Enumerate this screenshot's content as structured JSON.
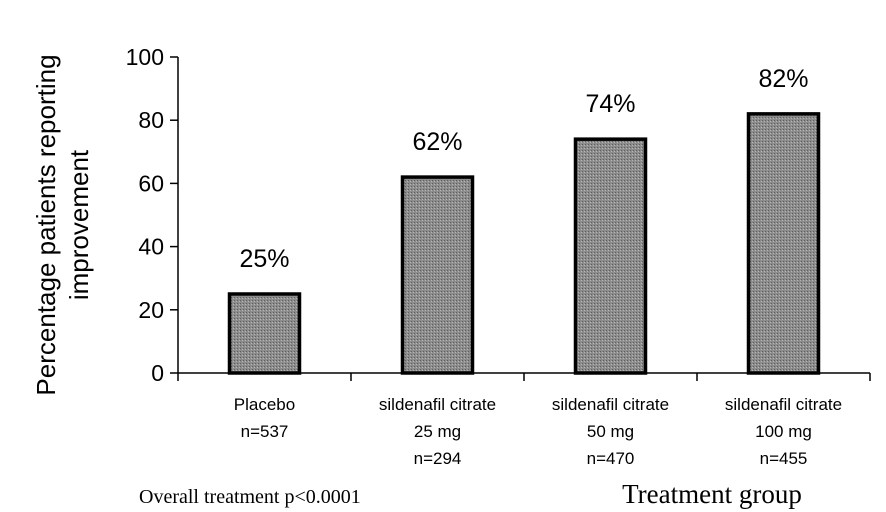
{
  "chart_data": {
    "type": "bar",
    "ylabel_lines": [
      "Percentage patients reporting",
      "improvement"
    ],
    "xlabel": "Treatment group",
    "footnote": "Overall treatment p<0.0001",
    "ylim": [
      0,
      100
    ],
    "yticks": [
      0,
      20,
      40,
      60,
      80,
      100
    ],
    "grid": false,
    "legend": "none",
    "bar_color": "#8c8c8c",
    "categories": [
      {
        "lines": [
          "Placebo",
          "n=537"
        ]
      },
      {
        "lines": [
          "sildenafil citrate",
          "25 mg",
          "n=294"
        ]
      },
      {
        "lines": [
          "sildenafil citrate",
          "50 mg",
          "n=470"
        ]
      },
      {
        "lines": [
          "sildenafil citrate",
          "100 mg",
          "n=455"
        ]
      }
    ],
    "values": [
      25,
      62,
      74,
      82
    ],
    "data_labels": [
      "25%",
      "62%",
      "74%",
      "82%"
    ]
  }
}
